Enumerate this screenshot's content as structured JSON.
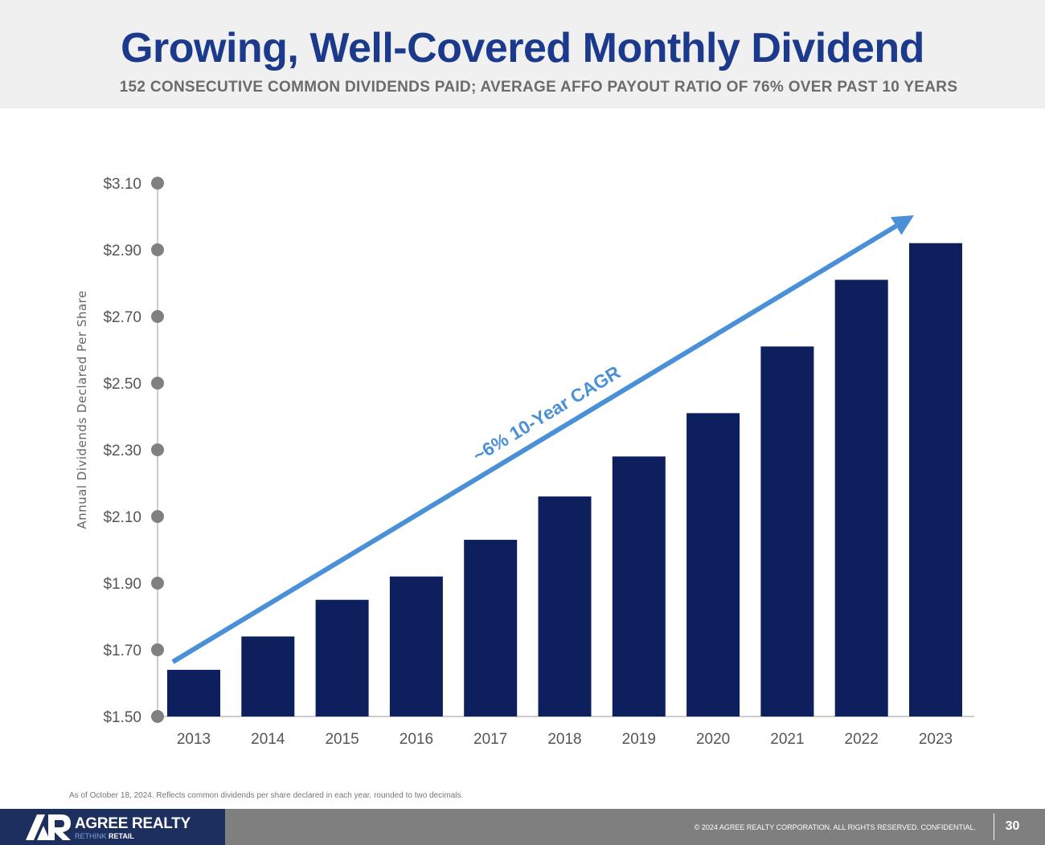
{
  "header": {
    "title": "Growing, Well-Covered Monthly Dividend",
    "subtitle": "152 CONSECUTIVE COMMON DIVIDENDS PAID; AVERAGE AFFO PAYOUT RATIO OF 76% OVER PAST 10 YEARS"
  },
  "chart_data": {
    "type": "bar",
    "categories": [
      "2013",
      "2014",
      "2015",
      "2016",
      "2017",
      "2018",
      "2019",
      "2020",
      "2021",
      "2022",
      "2023"
    ],
    "values": [
      1.64,
      1.74,
      1.85,
      1.92,
      2.03,
      2.16,
      2.28,
      2.41,
      2.61,
      2.81,
      2.92
    ],
    "ylabel": "Annual Dividends Declared Per Share",
    "yticks": [
      "$1.50",
      "$1.70",
      "$1.90",
      "$2.10",
      "$2.30",
      "$2.50",
      "$2.70",
      "$2.90",
      "$3.10"
    ],
    "ylim": [
      1.5,
      3.1
    ],
    "annotation": "~6% 10-Year CAGR",
    "bar_color": "#0d1f5c",
    "arrow_color": "#4a90d9",
    "grid": false
  },
  "footnote": "As of October 18, 2024. Reflects common dividends per share declared in each year, rounded to two decimals.",
  "footer": {
    "brand": "AGREE REALTY",
    "tagline_accent": "RETHINK",
    "tagline_rest": " RETAIL",
    "copyright": "© 2024 AGREE REALTY CORPORATION. ALL RIGHTS RESERVED. CONFIDENTIAL.",
    "page_number": "30"
  }
}
